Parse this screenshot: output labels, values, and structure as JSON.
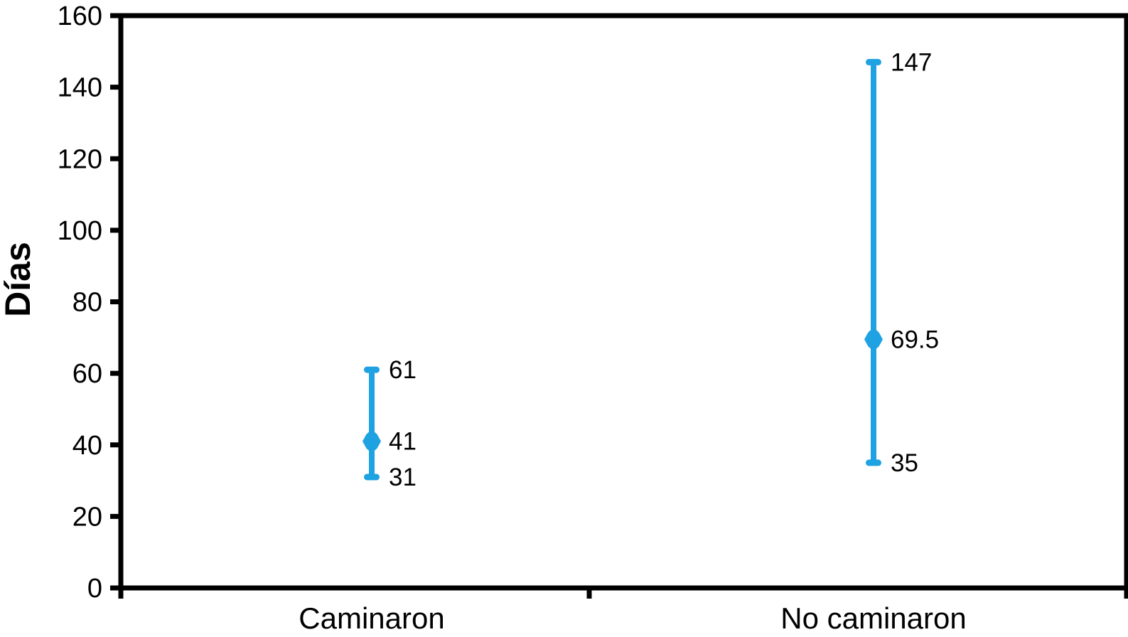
{
  "chart_data": {
    "type": "bar",
    "subtype": "high-low-range",
    "title": "",
    "xlabel": "",
    "ylabel": "Días",
    "ylim": [
      0,
      160
    ],
    "yticks": [
      0,
      20,
      40,
      60,
      80,
      100,
      120,
      140,
      160
    ],
    "categories": [
      "Caminaron",
      "No caminaron"
    ],
    "series": [
      {
        "name": "Días",
        "points": [
          {
            "category": "Caminaron",
            "high": 61,
            "mid": 41,
            "low": 31
          },
          {
            "category": "No caminaron",
            "high": 147,
            "mid": 69.5,
            "low": 35
          }
        ]
      }
    ],
    "legend": "none",
    "grid": false,
    "accent_color": "#1EA2E2",
    "frame_color": "#000000",
    "text_color": "#000000",
    "background": "#FFFFFF"
  }
}
